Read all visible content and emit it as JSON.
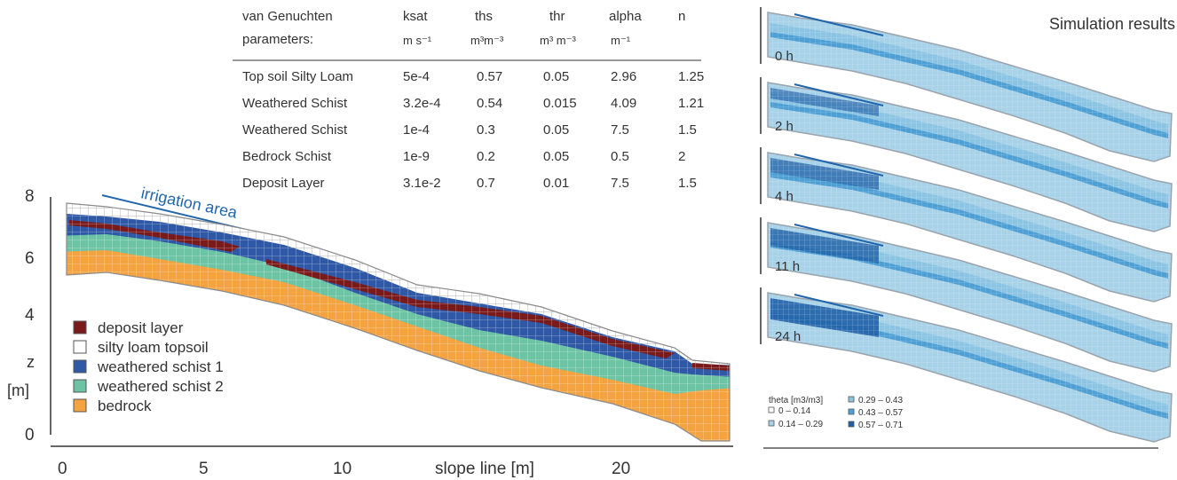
{
  "params_table": {
    "header_line1": [
      "van Genuchten",
      "ksat",
      "ths",
      "thr",
      "alpha",
      "n"
    ],
    "header_line2": [
      "parameters:",
      "m s⁻¹",
      "m³m⁻³",
      "m³ m⁻³",
      "m⁻¹",
      ""
    ],
    "rows": [
      [
        "Top soil Silty Loam",
        "5e-4",
        "0.57",
        "0.05",
        "2.96",
        "1.25"
      ],
      [
        "Weathered Schist",
        "3.2e-4",
        "0.54",
        "0.015",
        "4.09",
        "1.21"
      ],
      [
        "Weathered Schist",
        "1e-4",
        "0.3",
        "0.05",
        "7.5",
        "1.5"
      ],
      [
        "Bedrock Schist",
        "1e-9",
        "0.2",
        "0.05",
        "0.5",
        "2"
      ],
      [
        "Deposit Layer",
        "3.1e-2",
        "0.7",
        "0.01",
        "7.5",
        "1.5"
      ]
    ]
  },
  "profile": {
    "irrigation_label": "irrigation area",
    "axis_y_ticks": [
      "8",
      "6",
      "4",
      "0"
    ],
    "axis_y_label": "z",
    "axis_y_unit": "[m]",
    "axis_x_ticks": [
      "0",
      "5",
      "10",
      "20"
    ],
    "axis_x_label": "slope line [m]",
    "legend": [
      {
        "label": "deposit layer",
        "color": "#7a1a1a"
      },
      {
        "label": "silty loam topsoil",
        "color": "#ffffff"
      },
      {
        "label": "weathered schist 1",
        "color": "#2f59a6"
      },
      {
        "label": "weathered schist 2",
        "color": "#6cc4a4"
      },
      {
        "label": "bedrock",
        "color": "#f4a340"
      }
    ]
  },
  "simulation": {
    "title": "Simulation results",
    "timesteps": [
      "0 h",
      "2 h",
      "4 h",
      "11 h",
      "24 h"
    ],
    "legend_title": "theta [m3/m3]",
    "legend": [
      {
        "label": "0 – 0.14",
        "color": "#ffffff"
      },
      {
        "label": "0.14 – 0.29",
        "color": "#a8d2e8"
      },
      {
        "label": "0.29 – 0.43",
        "color": "#8cc4e4"
      },
      {
        "label": "0.43 – 0.57",
        "color": "#4d9fd4"
      },
      {
        "label": "0.57 – 0.71",
        "color": "#1f5fa6"
      }
    ]
  }
}
